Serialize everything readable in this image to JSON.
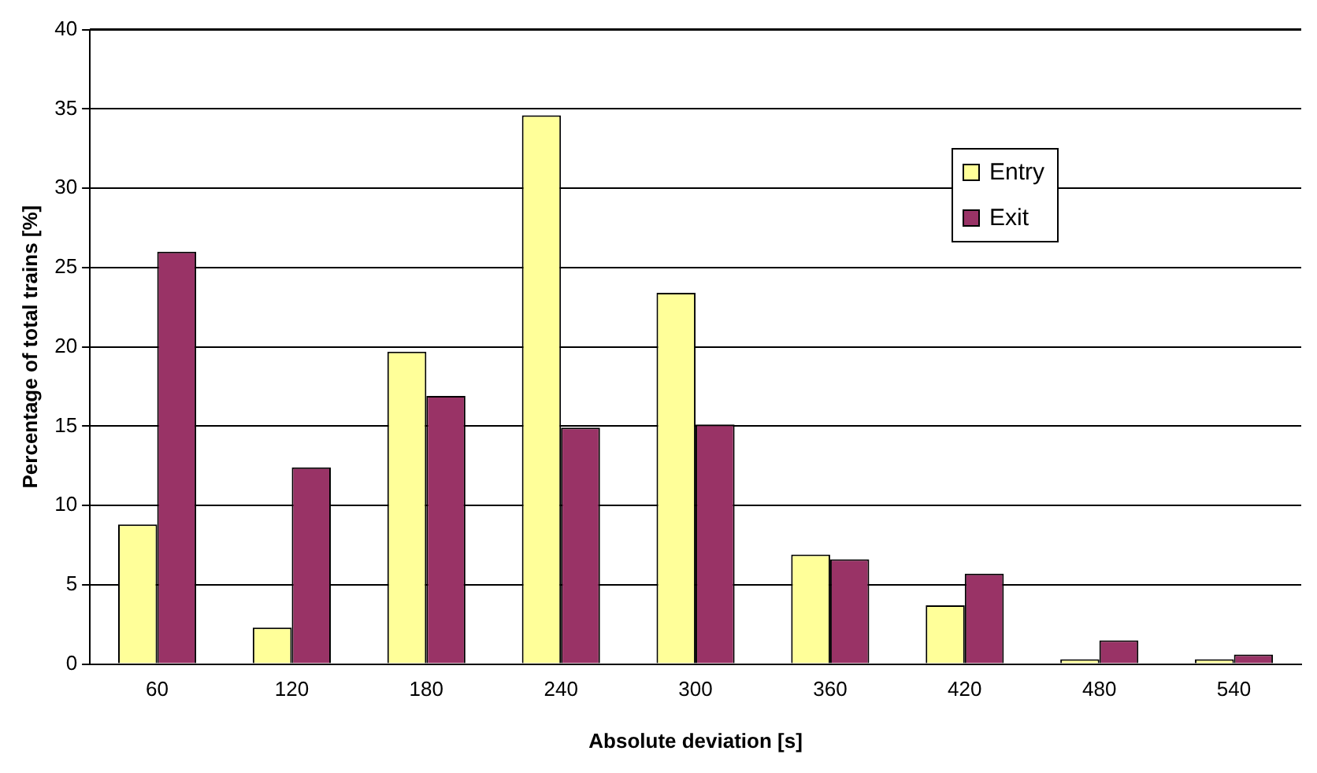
{
  "chart_data": {
    "type": "bar",
    "xlabel": "Absolute deviation [s]",
    "ylabel": "Percentage of total trains [%]",
    "categories": [
      "60",
      "120",
      "180",
      "240",
      "300",
      "360",
      "420",
      "480",
      "540"
    ],
    "series": [
      {
        "name": "Entry",
        "color": "#ffff99",
        "values": [
          8.8,
          2.3,
          19.7,
          34.6,
          23.4,
          6.9,
          3.7,
          0.3,
          0.3
        ]
      },
      {
        "name": "Exit",
        "color": "#993366",
        "values": [
          26.0,
          12.4,
          16.9,
          14.9,
          15.1,
          6.6,
          5.7,
          1.5,
          0.6
        ]
      }
    ],
    "ylim": [
      0,
      40
    ],
    "yticks": [
      0,
      5,
      10,
      15,
      20,
      25,
      30,
      35,
      40
    ],
    "grid": "y",
    "legend": "top right"
  }
}
